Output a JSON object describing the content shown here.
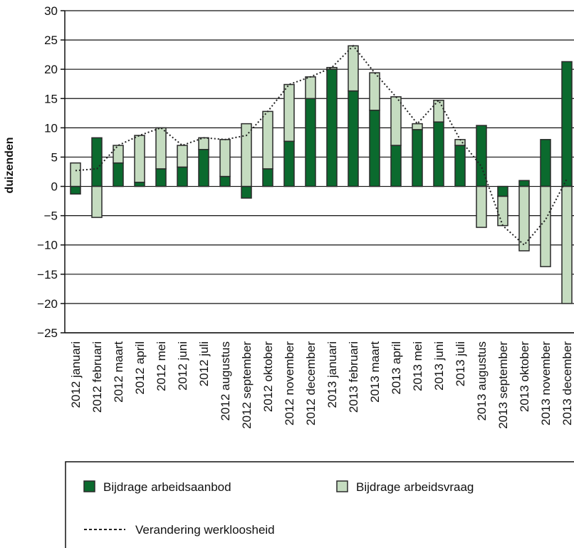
{
  "chart_data": {
    "type": "bar",
    "y_label": "duizenden",
    "categories": [
      "2012 januari",
      "2012 februari",
      "2012 maart",
      "2012 april",
      "2012 mei",
      "2012 juni",
      "2012 juli",
      "2012 augustus",
      "2012 september",
      "2012 oktober",
      "2012 november",
      "2012 december",
      "2013 januari",
      "2013 februari",
      "2013 maart",
      "2013 april",
      "2013 mei",
      "2013 juni",
      "2013 juli",
      "2013 augustus",
      "2013 september",
      "2013 oktober",
      "2013 november",
      "2013 december"
    ],
    "series": [
      {
        "name": "Bijdrage arbeidsaanbod",
        "color": "#0b6a2e",
        "values": [
          -1.3,
          8.3,
          4,
          0.7,
          3,
          3.3,
          6.3,
          1.7,
          -2,
          3,
          7.7,
          15,
          20,
          16.3,
          13,
          7,
          9.7,
          11,
          7,
          10.4,
          -1.7,
          1,
          8,
          21.3
        ]
      },
      {
        "name": "Bijdrage arbeidsvraag",
        "color": "#c5dcc0",
        "values": [
          4,
          -5.3,
          3,
          8,
          7,
          3.7,
          2,
          6.3,
          10.7,
          9.8,
          9.7,
          3.7,
          0.3,
          7.7,
          6.4,
          8.3,
          1,
          3.7,
          1,
          -7,
          -5,
          -11,
          -13.7,
          -20
        ]
      },
      {
        "name": "Verandering werkloosheid",
        "type": "line",
        "color": "#222222",
        "values": [
          2.7,
          3,
          7,
          8.7,
          10,
          7,
          8.3,
          8,
          8.7,
          12.8,
          17.4,
          18.7,
          20.3,
          24,
          19.4,
          15.3,
          10.7,
          14.7,
          8,
          3.4,
          -6.7,
          -10,
          -5.7,
          1.3
        ]
      }
    ],
    "stacked": true,
    "ylim": [
      -25,
      30
    ],
    "yticks": [
      30,
      25,
      20,
      15,
      10,
      5,
      0,
      {
        "value": -5,
        "label": "−5"
      },
      {
        "value": -10,
        "label": "−10"
      },
      {
        "value": -15,
        "label": "−15"
      },
      {
        "value": -20,
        "label": "−20"
      },
      {
        "value": -25,
        "label": "−25"
      }
    ],
    "grid": true,
    "legend": "bottom"
  }
}
